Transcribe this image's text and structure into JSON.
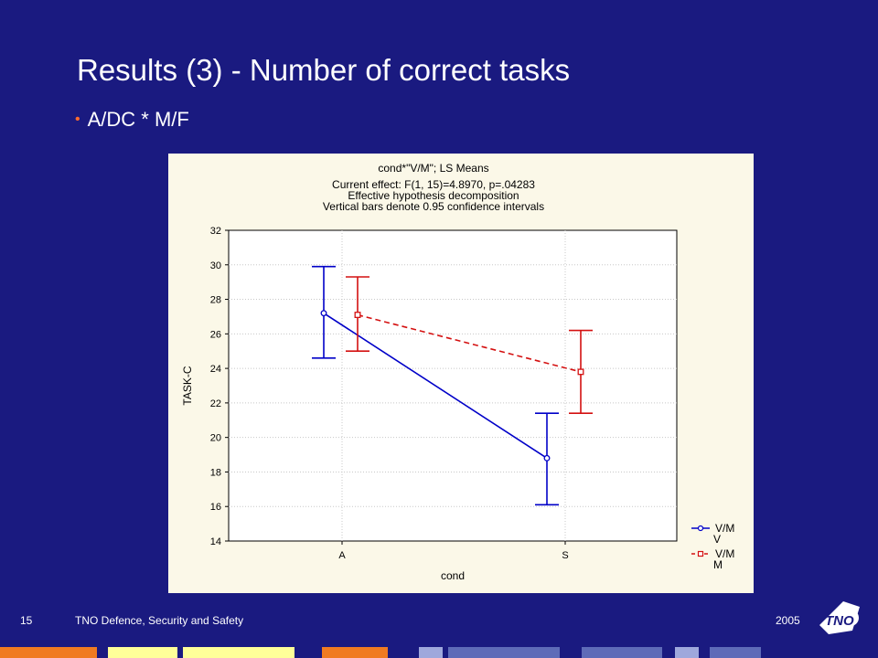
{
  "slide": {
    "title": "Results (3) - Number of correct tasks",
    "bullet": "A/DC * M/F",
    "page_number": "15",
    "organization": "TNO Defence, Security and Safety",
    "year": "2005",
    "logo_text": "TNO"
  },
  "colors": {
    "background": "#1a1a80",
    "panel": "#fbf8e8",
    "series_vm_v": "#0000c8",
    "series_vm_m": "#d41010",
    "bullet": "#ff6b2e"
  },
  "chart_data": {
    "type": "line",
    "title": "cond*\"V/M\"; LS Means",
    "subtitle_lines": [
      "Current effect: F(1, 15)=4.8970, p=.04283",
      "Effective hypothesis decomposition",
      "Vertical bars denote 0.95 confidence intervals"
    ],
    "xlabel": "cond",
    "ylabel": "TASK-C",
    "categories": [
      "A",
      "S"
    ],
    "ylim": [
      14,
      32
    ],
    "yticks": [
      "14",
      "16",
      "18",
      "20",
      "22",
      "24",
      "26",
      "28",
      "30",
      "32"
    ],
    "grid": true,
    "legend_position": "bottom-right",
    "series": [
      {
        "name_lines": [
          "V/M",
          "V"
        ],
        "values": [
          27.2,
          18.8
        ],
        "ci_lower": [
          24.6,
          16.1
        ],
        "ci_upper": [
          29.9,
          21.4
        ],
        "marker": "circle",
        "dash": false,
        "color": "#0000c8"
      },
      {
        "name_lines": [
          "V/M",
          "M"
        ],
        "values": [
          27.1,
          23.8
        ],
        "ci_lower": [
          25.0,
          21.4
        ],
        "ci_upper": [
          29.3,
          26.2
        ],
        "marker": "square",
        "dash": true,
        "color": "#d41010"
      }
    ]
  }
}
